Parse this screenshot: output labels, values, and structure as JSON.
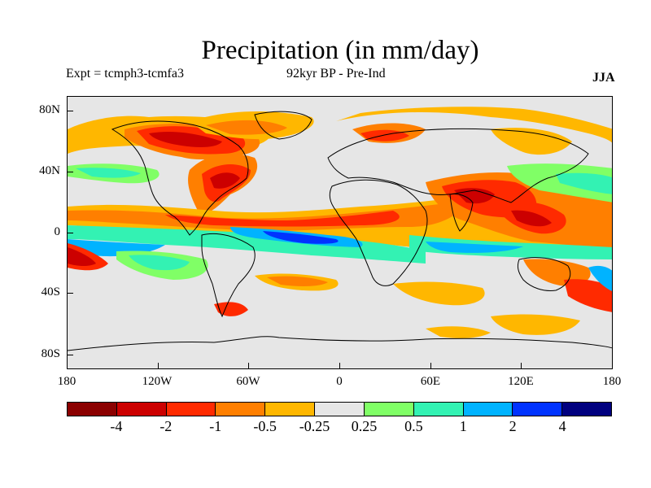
{
  "title": "Precipitation (in mm/day)",
  "subtitle_left": "Expt = tcmph3-tcmfa3",
  "subtitle_center": "92kyr BP - Pre-Ind",
  "subtitle_right": "JJA",
  "lat_labels": [
    "80N",
    "40N",
    "0",
    "40S",
    "80S"
  ],
  "lon_labels": [
    "180",
    "120W",
    "60W",
    "0",
    "60E",
    "120E",
    "180"
  ],
  "legend": {
    "colors": [
      "#8b0000",
      "#cc0000",
      "#ff2a00",
      "#ff7f00",
      "#ffb700",
      "#e6e6e6",
      "#80ff66",
      "#33f2b3",
      "#00b3ff",
      "#0033ff",
      "#00007f"
    ],
    "labels": [
      "-4",
      "-2",
      "-1",
      "-0.5",
      "-0.25",
      "0.25",
      "0.5",
      "1",
      "2",
      "4"
    ]
  },
  "colors": {
    "background": "#e6e6e6",
    "coastline": "#000000"
  }
}
